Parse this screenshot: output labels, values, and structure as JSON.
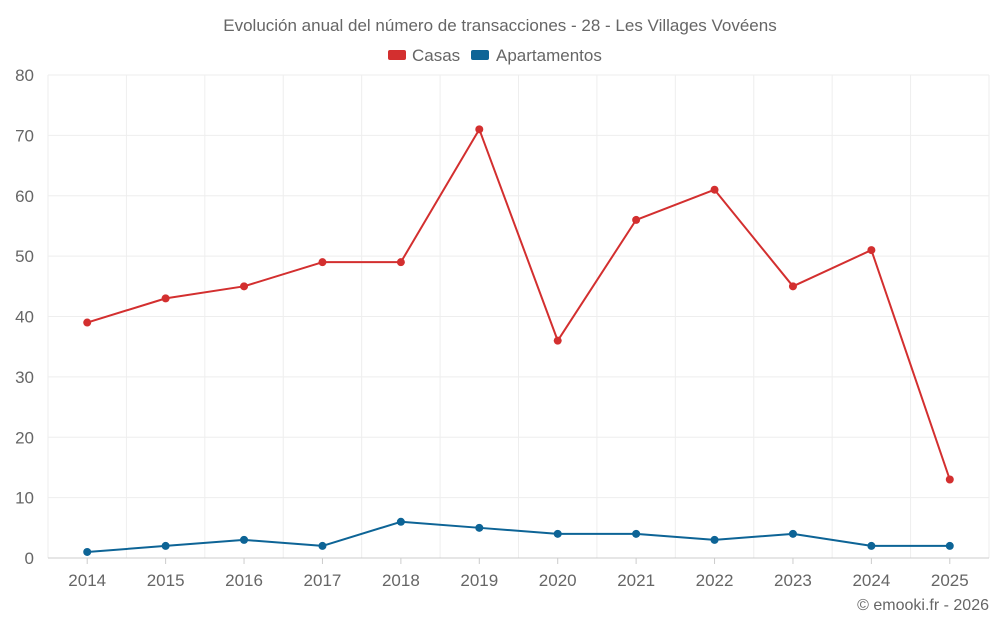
{
  "chart_data": {
    "type": "line",
    "title": "Evolución anual del número de transacciones - 28 - Les Villages Vovéens",
    "categories": [
      "2014",
      "2015",
      "2016",
      "2017",
      "2018",
      "2019",
      "2020",
      "2021",
      "2022",
      "2023",
      "2024",
      "2025"
    ],
    "series": [
      {
        "name": "Casas",
        "color": "#d32f2f",
        "values": [
          39,
          43,
          45,
          49,
          49,
          71,
          36,
          56,
          61,
          45,
          51,
          13
        ]
      },
      {
        "name": "Apartamentos",
        "color": "#0d6496",
        "values": [
          1,
          2,
          3,
          2,
          6,
          5,
          4,
          4,
          3,
          4,
          2,
          2
        ]
      }
    ],
    "ylim": [
      0,
      80
    ],
    "yticks": [
      0,
      10,
      20,
      30,
      40,
      50,
      60,
      70,
      80
    ],
    "xlabel": "",
    "ylabel": "",
    "grid": true,
    "legend": "top-center"
  },
  "credit": "© emooki.fr - 2026"
}
